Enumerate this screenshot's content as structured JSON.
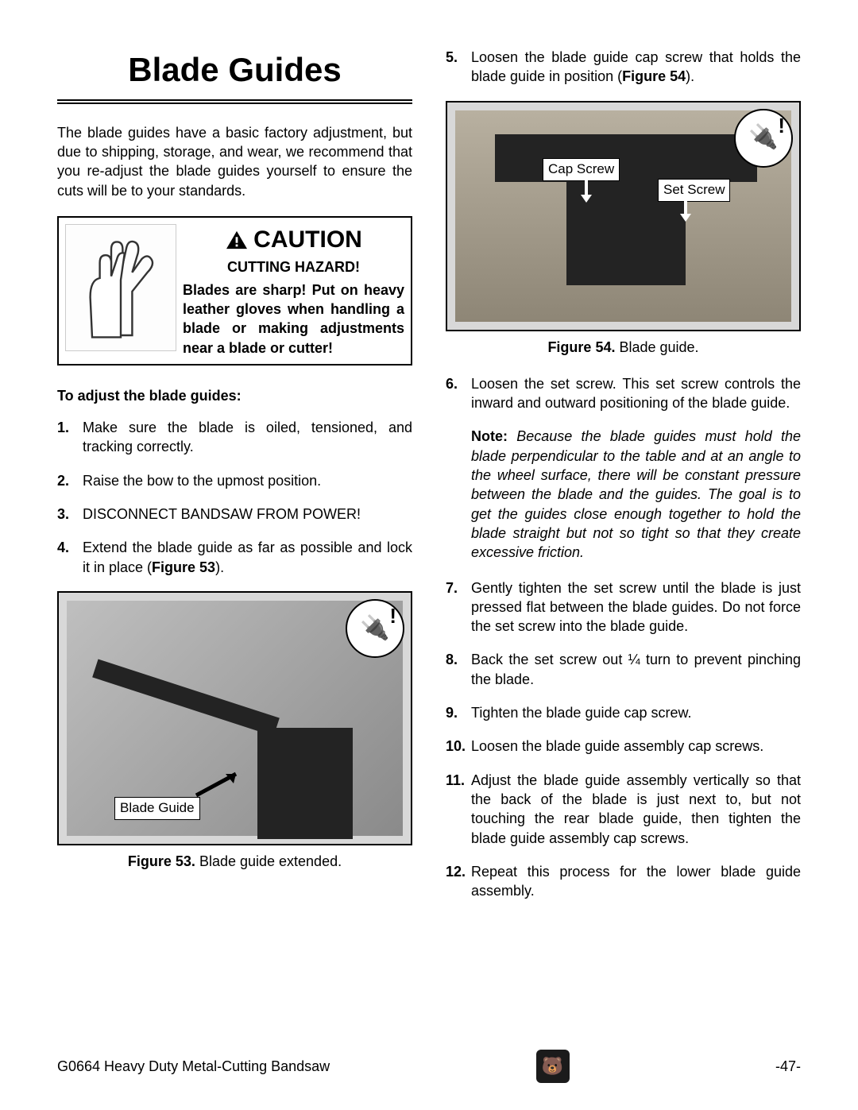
{
  "title": "Blade Guides",
  "intro": "The blade guides have a basic factory adjustment, but due to shipping, storage, and wear, we recommend that you re-adjust the blade guides yourself to ensure the cuts will be to your standards.",
  "caution": {
    "heading": "CAUTION",
    "subheading": "CUTTING HAZARD!",
    "body": "Blades are sharp! Put on heavy leather gloves when handling a blade or making adjustments near a blade or cutter!"
  },
  "adjust_heading": "To adjust the blade guides:",
  "steps_left": [
    {
      "n": "1.",
      "t": "Make sure the blade is oiled, tensioned, and tracking correctly."
    },
    {
      "n": "2.",
      "t": "Raise the bow to the upmost position."
    },
    {
      "n": "3.",
      "t": "DISCONNECT BANDSAW FROM POWER!"
    },
    {
      "n": "4.",
      "t": "Extend the blade guide as far as possible and lock it in place (",
      "ref": "Figure 53",
      "after": ")."
    }
  ],
  "fig53": {
    "caption_label": "Figure 53.",
    "caption_text": " Blade guide extended.",
    "label": "Blade Guide"
  },
  "steps_right_top": [
    {
      "n": "5.",
      "t": "Loosen the blade guide cap screw that holds the blade guide in position (",
      "ref": "Figure 54",
      "after": ")."
    }
  ],
  "fig54": {
    "caption_label": "Figure 54.",
    "caption_text": " Blade guide.",
    "label_cap": "Cap Screw",
    "label_set": "Set Screw"
  },
  "steps_right_6": {
    "n": "6.",
    "t": "Loosen the set screw. This set screw controls the inward and outward positioning of the blade guide."
  },
  "note": {
    "label": "Note:",
    "body": " Because the blade guides must hold the blade perpendicular to the table and at an angle to the wheel surface, there will be constant pressure between the blade and the guides. The goal is to get the guides close enough together to hold the blade straight but not so tight so that they create excessive friction."
  },
  "steps_right_rest": [
    {
      "n": "7.",
      "t": "Gently tighten the set screw until the blade is just pressed flat between the blade guides. Do not force the set screw into the blade guide."
    },
    {
      "n": "8.",
      "t": "Back the set screw out ¼ turn to prevent pinching the blade."
    },
    {
      "n": "9.",
      "t": "Tighten the blade guide cap screw."
    },
    {
      "n": "10.",
      "t": "Loosen the blade guide assembly cap screws."
    },
    {
      "n": "11.",
      "t": "Adjust the blade guide assembly vertically so that the back of the blade is just next to, but not touching the rear blade guide, then tighten the blade guide assembly cap screws."
    },
    {
      "n": "12.",
      "t": "Repeat this process for the lower blade guide assembly."
    }
  ],
  "footer": {
    "left": "G0664 Heavy Duty Metal-Cutting Bandsaw",
    "right": "-47-"
  },
  "colors": {
    "text": "#000000",
    "bg": "#ffffff",
    "figure_bg": "#d8d8d8",
    "machine_dark": "#232323"
  },
  "typography": {
    "title_fontsize": 42,
    "body_fontsize": 18,
    "caution_heading_fontsize": 30
  }
}
